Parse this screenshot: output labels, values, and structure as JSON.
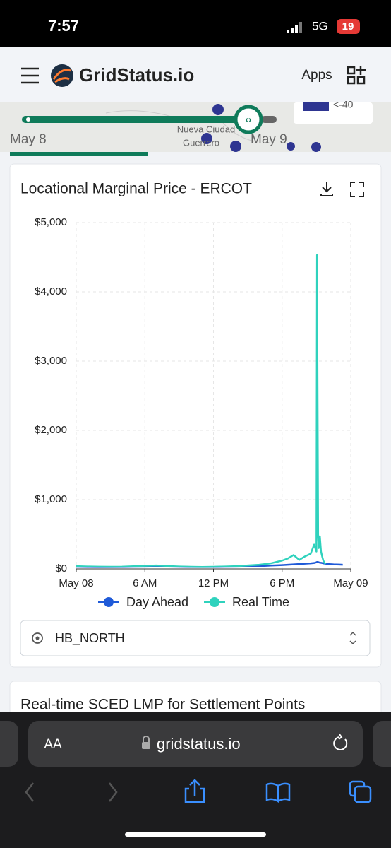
{
  "status_bar": {
    "time": "7:57",
    "network": "5G",
    "battery": "19"
  },
  "header": {
    "brand": "GridStatus.io",
    "apps": "Apps"
  },
  "map": {
    "date_start": "May 8",
    "date_end": "May 9",
    "place_1": "Nueva Ciudad",
    "place_2": "Guerrero",
    "legend": "<-40"
  },
  "chart_data": {
    "type": "line",
    "title": "Locational Marginal Price - ERCOT",
    "x": [
      0,
      1,
      2,
      3,
      4,
      5,
      6,
      7,
      8,
      9,
      10,
      11,
      12,
      13,
      14,
      15,
      16,
      17,
      18,
      18.5,
      19,
      19.5,
      20,
      20.5,
      20.8,
      21,
      21.05,
      21.1,
      21.15,
      21.2,
      21.3,
      21.4,
      21.5,
      21.6,
      21.7,
      21.8,
      22,
      22.5,
      23,
      23.3
    ],
    "series": [
      {
        "name": "Day Ahead",
        "color": "#1f5ad8",
        "values": [
          30,
          28,
          27,
          27,
          28,
          30,
          32,
          35,
          33,
          30,
          28,
          27,
          28,
          30,
          32,
          35,
          40,
          48,
          55,
          60,
          65,
          70,
          75,
          80,
          85,
          95,
          100,
          100,
          98,
          95,
          90,
          88,
          85,
          80,
          78,
          75,
          70,
          65,
          62,
          60
        ]
      },
      {
        "name": "Real Time",
        "color": "#2fd2bd",
        "values": [
          40,
          35,
          32,
          30,
          32,
          38,
          45,
          50,
          42,
          35,
          30,
          28,
          30,
          35,
          40,
          50,
          60,
          80,
          120,
          150,
          200,
          130,
          180,
          220,
          350,
          250,
          4530,
          2450,
          480,
          300,
          470,
          250,
          180,
          120,
          90,
          70,
          null,
          null,
          null,
          null
        ]
      }
    ],
    "xlim": [
      0,
      24
    ],
    "xticks": [
      {
        "value": 0,
        "label": "May 08"
      },
      {
        "value": 6,
        "label": "6 AM"
      },
      {
        "value": 12,
        "label": "12 PM"
      },
      {
        "value": 18,
        "label": "6 PM"
      },
      {
        "value": 24,
        "label": "May 09"
      }
    ],
    "ylim": [
      0,
      5000
    ],
    "yticks": [
      {
        "value": 0,
        "label": "$0"
      },
      {
        "value": 1000,
        "label": "$1,000"
      },
      {
        "value": 2000,
        "label": "$2,000"
      },
      {
        "value": 3000,
        "label": "$3,000"
      },
      {
        "value": 4000,
        "label": "$4,000"
      },
      {
        "value": 5000,
        "label": "$5,000"
      }
    ],
    "grid": true
  },
  "location_select": "HB_NORTH",
  "next_card_title": "Real-time SCED LMP for Settlement Points",
  "browser": {
    "text_size": "AA",
    "url": "gridstatus.io"
  }
}
